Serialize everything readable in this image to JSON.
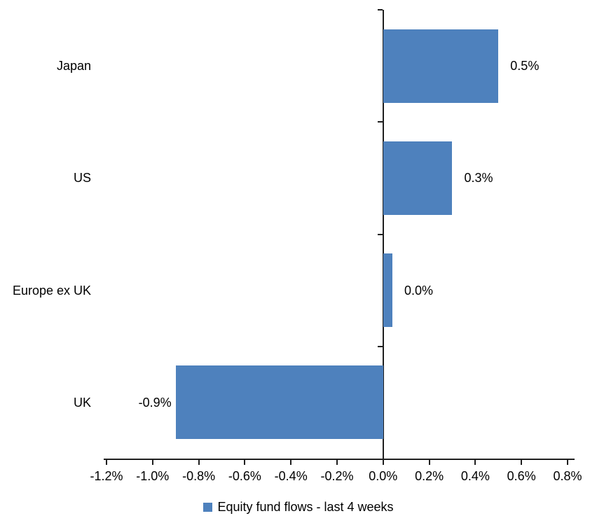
{
  "chart_data": {
    "type": "bar",
    "orientation": "horizontal",
    "title": "",
    "categories": [
      "Japan",
      "US",
      "Europe ex UK",
      "UK"
    ],
    "values": [
      0.5,
      0.3,
      0.04,
      -0.9
    ],
    "value_labels": [
      "0.5%",
      "0.3%",
      "0.0%",
      "-0.9%"
    ],
    "series_name": "Equity fund flows - last 4 weeks",
    "xlim": [
      -1.2,
      0.8
    ],
    "x_ticks": [
      -1.2,
      -1.0,
      -0.8,
      -0.6,
      -0.4,
      -0.2,
      0.0,
      0.2,
      0.4,
      0.6,
      0.8
    ],
    "x_tick_labels": [
      "-1.2%",
      "-1.0%",
      "-0.8%",
      "-0.6%",
      "-0.4%",
      "-0.2%",
      "0.0%",
      "0.2%",
      "0.4%",
      "0.6%",
      "0.8%"
    ],
    "bar_color": "#4E81BD",
    "axis_color": "#1f1f1f",
    "grid": false,
    "legend_position": "bottom"
  }
}
